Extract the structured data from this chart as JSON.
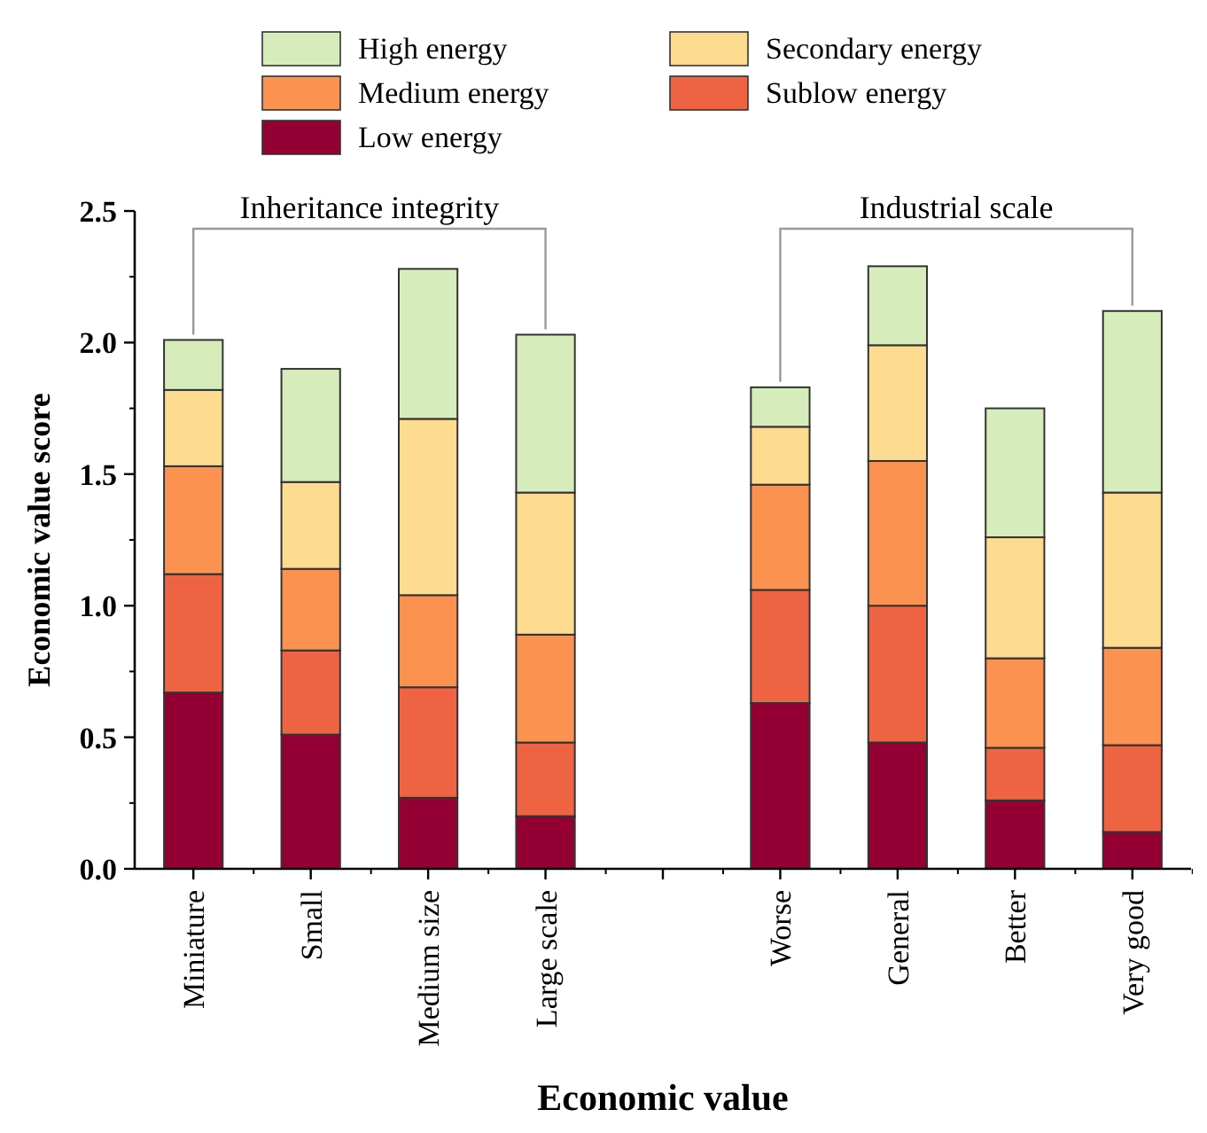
{
  "chart_data": {
    "type": "bar",
    "stacked": true,
    "xlabel": "Economic value",
    "ylabel": "Economic value score",
    "categories": [
      "Miniature",
      "Small",
      "Medium size",
      "Large scale",
      null,
      "Worse",
      "General",
      "Better",
      "Very good"
    ],
    "series": [
      {
        "name": "Low energy",
        "color": "#940034",
        "values": [
          0.67,
          0.51,
          0.27,
          0.2,
          null,
          0.63,
          0.48,
          0.26,
          0.14
        ]
      },
      {
        "name": "Sublow energy",
        "color": "#ee6443",
        "values": [
          0.45,
          0.32,
          0.42,
          0.28,
          null,
          0.43,
          0.52,
          0.2,
          0.33
        ]
      },
      {
        "name": "Medium energy",
        "color": "#fc9250",
        "values": [
          0.41,
          0.31,
          0.35,
          0.41,
          null,
          0.4,
          0.55,
          0.34,
          0.37
        ]
      },
      {
        "name": "Secondary energy",
        "color": "#fddb8f",
        "values": [
          0.29,
          0.33,
          0.67,
          0.54,
          null,
          0.22,
          0.44,
          0.46,
          0.59
        ]
      },
      {
        "name": "High energy",
        "color": "#d6edbb",
        "values": [
          0.19,
          0.43,
          0.57,
          0.6,
          null,
          0.15,
          0.3,
          0.49,
          0.69
        ]
      }
    ],
    "ylim": [
      0,
      2.5
    ],
    "yticks": [
      {
        "value": 0,
        "label": "0.0"
      },
      {
        "value": 0.5,
        "label": "0.5"
      },
      {
        "value": 1,
        "label": "1.0"
      },
      {
        "value": 1.5,
        "label": "1.5"
      },
      {
        "value": 2,
        "label": "2.0"
      },
      {
        "value": 2.5,
        "label": "2.5"
      }
    ],
    "grid": false,
    "legend": "top",
    "annotations": [
      "Inheritance integrity",
      "Industrial scale"
    ]
  }
}
